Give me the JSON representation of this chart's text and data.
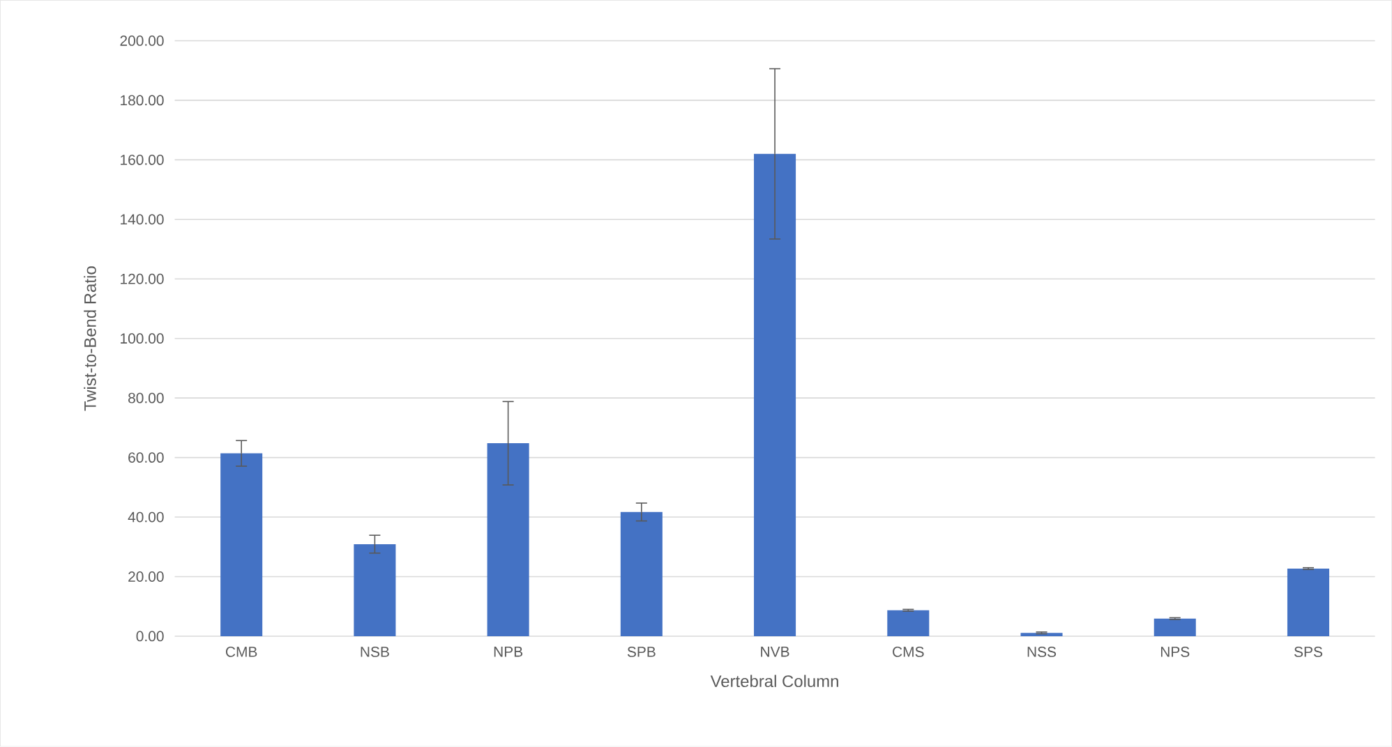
{
  "chart_data": {
    "type": "bar",
    "xlabel": "Vertebral Column",
    "ylabel": "Twist-to-Bend Ratio",
    "categories": [
      "CMB",
      "NSB",
      "NPB",
      "SPB",
      "NVB",
      "CMS",
      "NSS",
      "NPS",
      "SPS"
    ],
    "values": [
      61.4,
      30.9,
      64.8,
      41.7,
      162.0,
      8.7,
      1.1,
      5.9,
      22.7
    ],
    "errors": [
      4.3,
      3.0,
      14.0,
      3.0,
      28.6,
      0.3,
      0.3,
      0.3,
      0.3
    ],
    "color": "#4472c4",
    "ylim": [
      0,
      200
    ],
    "yticks": [
      {
        "value": 0,
        "label": "0.00"
      },
      {
        "value": 20,
        "label": "20.00"
      },
      {
        "value": 40,
        "label": "40.00"
      },
      {
        "value": 60,
        "label": "60.00"
      },
      {
        "value": 80,
        "label": "80.00"
      },
      {
        "value": 100,
        "label": "100.00"
      },
      {
        "value": 120,
        "label": "120.00"
      },
      {
        "value": 140,
        "label": "140.00"
      },
      {
        "value": 160,
        "label": "160.00"
      },
      {
        "value": 180,
        "label": "180.00"
      },
      {
        "value": 200,
        "label": "200.00"
      }
    ],
    "grid": "y"
  }
}
